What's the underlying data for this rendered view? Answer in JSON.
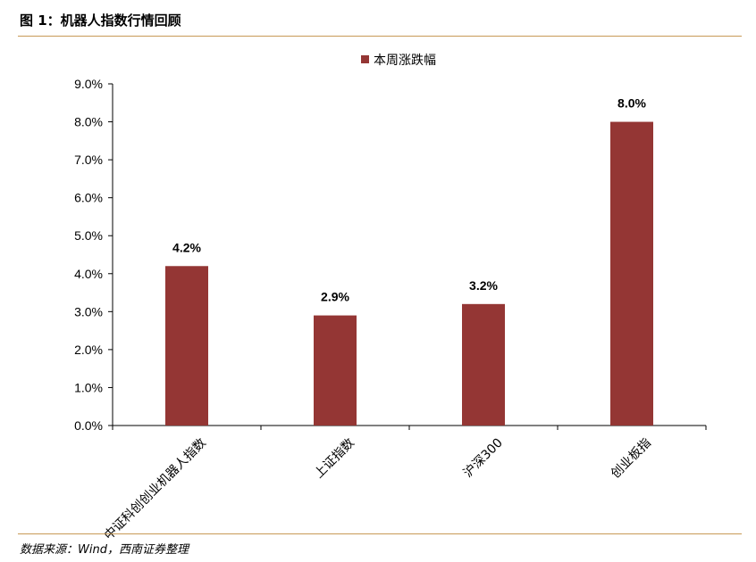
{
  "figure": {
    "title": "图 1：机器人指数行情回顾",
    "source": "数据来源：Wind，西南证券整理"
  },
  "colors": {
    "bar": "#943634",
    "rule": "#c89a56",
    "axis": "#000000"
  },
  "chart_data": {
    "type": "bar",
    "categories": [
      "中证科创创业机器人指数",
      "上证指数",
      "沪深300",
      "创业板指"
    ],
    "series": [
      {
        "name": "本周涨跌幅",
        "values": [
          4.2,
          2.9,
          3.2,
          8.0
        ]
      }
    ],
    "data_labels": [
      "4.2%",
      "2.9%",
      "3.2%",
      "8.0%"
    ],
    "y_ticks": [
      "0.0%",
      "1.0%",
      "2.0%",
      "3.0%",
      "4.0%",
      "5.0%",
      "6.0%",
      "7.0%",
      "8.0%",
      "9.0%"
    ],
    "ylim": [
      0,
      9
    ],
    "grid": false,
    "legend_position": "top-center"
  }
}
